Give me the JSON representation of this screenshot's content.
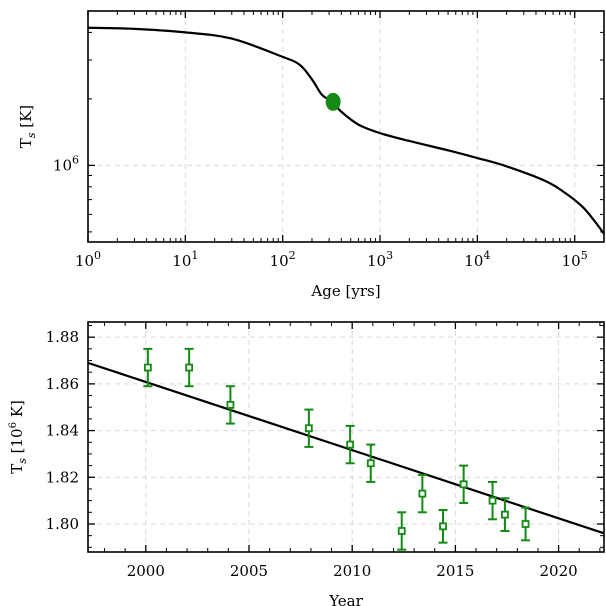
{
  "colors": {
    "model_line": "#000000",
    "observations": "#138a13"
  },
  "chart_data": [
    {
      "type": "line",
      "xlabel": "Age [yrs]",
      "ylabel": "T",
      "ylabel_sub": "s",
      "ylabel_unit": " [K]",
      "x_scale": "log",
      "y_scale": "log",
      "xlim": [
        1,
        200000
      ],
      "ylim": [
        450000,
        5000000
      ],
      "x_ticks": [
        1,
        10,
        100,
        1000,
        10000,
        100000
      ],
      "x_tick_labels": [
        {
          "base": "10",
          "exp": "0"
        },
        {
          "base": "10",
          "exp": "1"
        },
        {
          "base": "10",
          "exp": "2"
        },
        {
          "base": "10",
          "exp": "3"
        },
        {
          "base": "10",
          "exp": "4"
        },
        {
          "base": "10",
          "exp": "5"
        }
      ],
      "y_ticks": [
        1000000
      ],
      "y_tick_labels": [
        {
          "base": "10",
          "exp": "6"
        }
      ],
      "grid": true,
      "series": [
        {
          "x": [
            1,
            3,
            10,
            30,
            100,
            150,
            200,
            250,
            300,
            330,
            400,
            600,
            1000,
            2000,
            5000,
            10000,
            20000,
            50000,
            80000,
            120000,
            160000,
            200000
          ],
          "y": [
            4200000,
            4150000,
            4000000,
            3750000,
            3100000,
            2850000,
            2450000,
            2100000,
            1980000,
            1920000,
            1750000,
            1530000,
            1400000,
            1290000,
            1170000,
            1080000,
            990000,
            850000,
            750000,
            650000,
            560000,
            490000
          ]
        }
      ],
      "points": [
        {
          "x": 330,
          "y": 1940000
        }
      ]
    },
    {
      "type": "scatter",
      "xlabel": "Year",
      "ylabel": "T",
      "ylabel_sub": "s",
      "ylabel_unit_pre": " [10",
      "ylabel_unit_exp": "6",
      "ylabel_unit_post": " K]",
      "xlim": [
        1997.2,
        2022.2
      ],
      "ylim": [
        1.788,
        1.8865
      ],
      "x_ticks": [
        2000,
        2005,
        2010,
        2015,
        2020
      ],
      "x_tick_labels": [
        "2000",
        "2005",
        "2010",
        "2015",
        "2020"
      ],
      "y_ticks": [
        1.8,
        1.82,
        1.84,
        1.86,
        1.88
      ],
      "y_tick_labels": [
        "1.80",
        "1.82",
        "1.84",
        "1.86",
        "1.88"
      ],
      "grid": true,
      "fit_line": {
        "x": [
          1997.2,
          2022.2
        ],
        "y": [
          1.869,
          1.796
        ]
      },
      "series": [
        {
          "x": [
            2000.1,
            2002.1,
            2004.1,
            2007.9,
            2009.9,
            2010.9,
            2012.4,
            2013.4,
            2014.4,
            2015.4,
            2016.8,
            2017.4,
            2018.4
          ],
          "y": [
            1.867,
            1.867,
            1.851,
            1.841,
            1.834,
            1.826,
            1.797,
            1.813,
            1.799,
            1.817,
            1.81,
            1.804,
            1.8
          ],
          "yerr": [
            0.008,
            0.008,
            0.008,
            0.008,
            0.008,
            0.008,
            0.008,
            0.008,
            0.007,
            0.008,
            0.008,
            0.007,
            0.007
          ]
        }
      ]
    }
  ]
}
